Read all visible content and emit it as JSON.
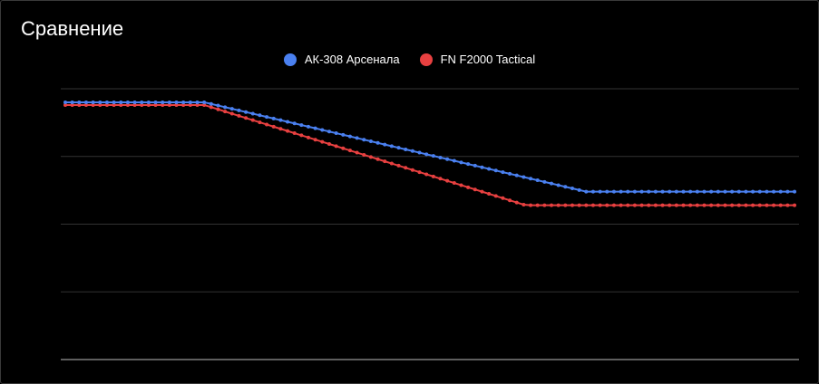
{
  "chart_data": {
    "type": "line",
    "title": "Сравнение",
    "xlabel": "",
    "ylabel": "",
    "ylim": [
      0,
      100
    ],
    "grid": true,
    "legend_position": "top-center",
    "x": [
      0,
      1,
      2,
      3,
      4,
      5,
      6,
      7,
      8,
      9,
      10,
      11,
      12,
      13,
      14,
      15,
      16,
      17,
      18,
      19,
      20,
      21,
      22,
      23,
      24,
      25,
      26,
      27,
      28,
      29,
      30,
      31,
      32,
      33,
      34,
      35,
      36,
      37,
      38,
      39,
      40,
      41,
      42,
      43,
      44,
      45,
      46,
      47,
      48,
      49,
      50,
      51,
      52,
      53,
      54,
      55,
      56,
      57,
      58,
      59,
      60,
      61,
      62,
      63,
      64,
      65,
      66,
      67,
      68,
      69,
      70,
      71,
      72,
      73,
      74,
      75,
      76,
      77,
      78,
      79,
      80,
      81,
      82,
      83,
      84,
      85,
      86,
      87,
      88,
      89,
      90,
      91,
      92,
      93,
      94,
      95,
      96,
      97,
      98,
      99,
      100,
      101,
      102,
      103,
      104,
      105
    ],
    "series": [
      {
        "name": "АК-308 Арсенала",
        "color": "#4a80f0",
        "values": [
          95,
          95,
          95,
          95,
          95,
          95,
          95,
          95,
          95,
          95,
          95,
          95,
          95,
          95,
          95,
          95,
          95,
          95,
          95,
          95,
          95,
          94.4,
          93.8,
          93.2,
          92.6,
          92.0,
          91.4,
          90.8,
          90.2,
          89.6,
          89.0,
          88.4,
          87.8,
          87.2,
          86.6,
          86.0,
          85.4,
          84.8,
          84.2,
          83.6,
          83.0,
          82.4,
          81.8,
          81.2,
          80.6,
          80.0,
          79.4,
          78.8,
          78.2,
          77.6,
          77.0,
          76.4,
          75.8,
          75.2,
          74.6,
          74.0,
          73.4,
          72.8,
          72.2,
          71.6,
          71.0,
          70.4,
          69.8,
          69.2,
          68.6,
          68.0,
          67.4,
          66.8,
          66.2,
          65.6,
          65.0,
          64.4,
          63.8,
          63.2,
          62.6,
          62.0,
          62,
          62,
          62,
          62,
          62,
          62,
          62,
          62,
          62,
          62,
          62,
          62,
          62,
          62,
          62,
          62,
          62,
          62,
          62,
          62,
          62,
          62,
          62,
          62,
          62,
          62,
          62,
          62,
          62,
          62
        ]
      },
      {
        "name": "FN F2000 Tactical",
        "color": "#e84040",
        "values": [
          94,
          94,
          94,
          94,
          94,
          94,
          94,
          94,
          94,
          94,
          94,
          94,
          94,
          94,
          94,
          94,
          94,
          94,
          94,
          94,
          94,
          93.2,
          92.4,
          91.6,
          90.8,
          90.0,
          89.2,
          88.4,
          87.6,
          86.8,
          86.0,
          85.2,
          84.4,
          83.6,
          82.8,
          82.0,
          81.2,
          80.4,
          79.6,
          78.8,
          78.0,
          77.2,
          76.4,
          75.6,
          74.8,
          74.0,
          73.2,
          72.4,
          71.6,
          70.8,
          70.0,
          69.2,
          68.4,
          67.6,
          66.8,
          66.0,
          65.2,
          64.4,
          63.6,
          62.8,
          62.0,
          61.2,
          60.4,
          59.6,
          58.8,
          58.0,
          57.2,
          57,
          57,
          57,
          57,
          57,
          57,
          57,
          57,
          57,
          57,
          57,
          57,
          57,
          57,
          57,
          57,
          57,
          57,
          57,
          57,
          57,
          57,
          57,
          57,
          57,
          57,
          57,
          57,
          57,
          57,
          57,
          57,
          57,
          57,
          57,
          57,
          57,
          57,
          57
        ]
      }
    ]
  }
}
